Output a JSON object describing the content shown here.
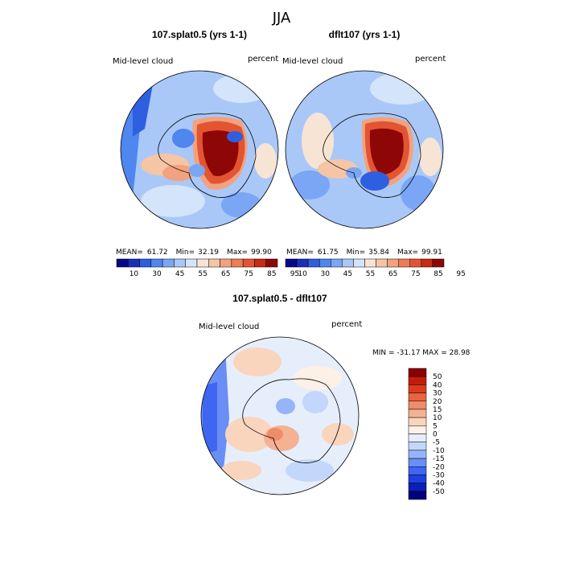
{
  "figure_title": "JJA",
  "variable": "Mid-level cloud",
  "units": "percent",
  "colors": {
    "abs_scale": [
      "#08088a",
      "#1a2fb8",
      "#2e5fe0",
      "#4f86f0",
      "#7aa6f5",
      "#a9c8f8",
      "#d3e4fb",
      "#f8e4d4",
      "#f5c5a6",
      "#f2a27e",
      "#ee7c55",
      "#e35532",
      "#c82a14",
      "#8e0707"
    ],
    "diff_scale": [
      "#000080",
      "#0b1fb5",
      "#1f40e0",
      "#3f66f0",
      "#6a8ef5",
      "#96b4f8",
      "#c3d6fb",
      "#e6eefc",
      "#fdf0e6",
      "#f9d5bd",
      "#f4b293",
      "#ef8c69",
      "#e86440",
      "#df3a1a",
      "#c21d0a",
      "#8b0000"
    ]
  },
  "chart_data": [
    {
      "type": "heatmap",
      "title": "107.splat0.5 (yrs 1-1)",
      "variable": "Mid-level cloud",
      "units": "percent",
      "stats": {
        "mean_label": "MEAN=",
        "mean": "61.72",
        "min_label": "Min=",
        "min": "32.19",
        "max_label": "Max=",
        "max": "99.90"
      },
      "colorbar_ticks": [
        "10",
        "30",
        "45",
        "55",
        "65",
        "75",
        "85",
        "95"
      ]
    },
    {
      "type": "heatmap",
      "title": "dflt107 (yrs 1-1)",
      "variable": "Mid-level cloud",
      "units": "percent",
      "stats": {
        "mean_label": "MEAN=",
        "mean": "61.75",
        "min_label": "Min=",
        "min": "35.84",
        "max_label": "Max=",
        "max": "99.91"
      },
      "colorbar_ticks": [
        "10",
        "30",
        "45",
        "55",
        "65",
        "75",
        "85",
        "95"
      ]
    },
    {
      "type": "heatmap",
      "title": "107.splat0.5 - dflt107",
      "variable": "Mid-level cloud",
      "units": "percent",
      "range_text": "MIN = -31.17 MAX =  28.98",
      "colorbar_ticks": [
        "50",
        "40",
        "30",
        "20",
        "15",
        "10",
        "5",
        "0",
        "-5",
        "-10",
        "-15",
        "-20",
        "-30",
        "-40",
        "-50"
      ]
    }
  ]
}
